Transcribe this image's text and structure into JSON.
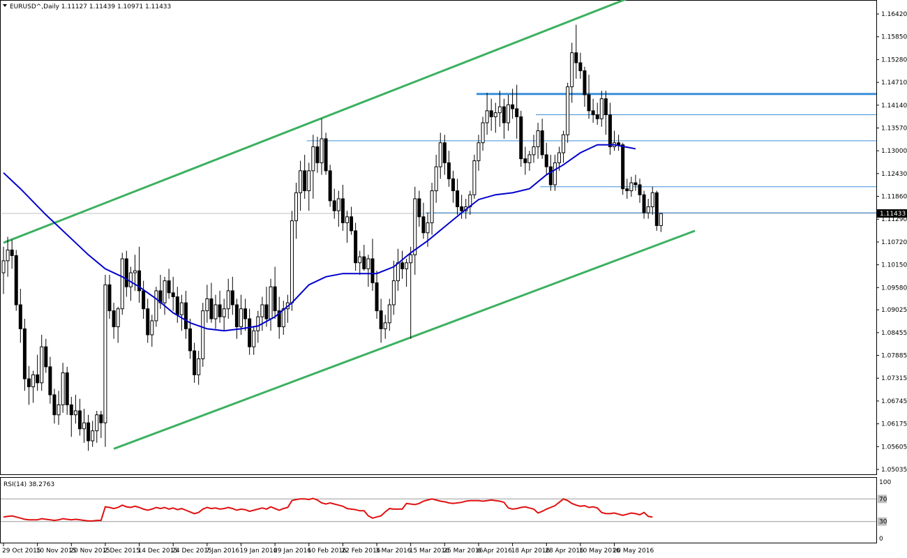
{
  "window": {
    "symbol_header": "EURUSD^,Daily  1.11127 1.11439 1.10971 1.11433",
    "dropdown_icon": "triangle-down-icon"
  },
  "chart_data": {
    "type": "candlestick",
    "title": "EURUSD^,Daily",
    "ohlc_header": {
      "open": 1.11127,
      "high": 1.11439,
      "low": 1.10971,
      "close": 1.11433
    },
    "price_axis": {
      "ticks": [
        "1.16420",
        "1.15850",
        "1.15280",
        "1.14710",
        "1.14140",
        "1.13570",
        "1.13000",
        "1.12430",
        "1.11860",
        "1.11290",
        "1.10720",
        "1.10150",
        "1.09580",
        "1.09025",
        "1.08455",
        "1.07885",
        "1.07315",
        "1.06745",
        "1.06175",
        "1.05605",
        "1.05035"
      ],
      "range": [
        1.0503,
        1.1677
      ],
      "current_price_label": "1.11433",
      "current_price": 1.11433
    },
    "time_axis": {
      "labels": [
        "29 Oct 2015",
        "10 Nov 2015",
        "20 Nov 2015",
        "2 Dec 2015",
        "14 Dec 2015",
        "24 Dec 2015",
        "7 Jan 2016",
        "19 Jan 2016",
        "29 Jan 2016",
        "10 Feb 2016",
        "22 Feb 2016",
        "3 Mar 2016",
        "15 Mar 2016",
        "25 Mar 2016",
        "6 Apr 2016",
        "18 Apr 2016",
        "28 Apr 2016",
        "10 May 2016",
        "20 May 2016"
      ],
      "label_bar_index": [
        0,
        8,
        16,
        24,
        32,
        40,
        48,
        56,
        64,
        72,
        80,
        88,
        96,
        104,
        112,
        120,
        128,
        136,
        144
      ]
    },
    "candles": [
      [
        1.0995,
        1.106,
        1.0942,
        1.1025
      ],
      [
        1.1025,
        1.1085,
        1.0985,
        1.1052
      ],
      [
        1.1052,
        1.1078,
        1.1005,
        1.1038
      ],
      [
        1.1038,
        1.1052,
        1.09,
        1.0915
      ],
      [
        1.0915,
        1.0955,
        1.082,
        1.0855
      ],
      [
        1.0855,
        1.088,
        1.07,
        1.073
      ],
      [
        1.073,
        1.0762,
        1.0665,
        1.071
      ],
      [
        1.071,
        1.075,
        1.067,
        1.074
      ],
      [
        1.074,
        1.079,
        1.07,
        1.072
      ],
      [
        1.072,
        1.084,
        1.07,
        1.081
      ],
      [
        1.081,
        1.083,
        1.0745,
        1.076
      ],
      [
        1.076,
        1.0785,
        1.0668,
        1.069
      ],
      [
        1.069,
        1.0705,
        1.0618,
        1.064
      ],
      [
        1.064,
        1.07,
        1.0615,
        1.0665
      ],
      [
        1.0665,
        1.077,
        1.0645,
        1.0745
      ],
      [
        1.0745,
        1.076,
        1.064,
        1.0665
      ],
      [
        1.0665,
        1.0685,
        1.0585,
        1.064
      ],
      [
        1.064,
        1.069,
        1.0618,
        1.065
      ],
      [
        1.065,
        1.068,
        1.0588,
        1.0605
      ],
      [
        1.0605,
        1.0655,
        1.057,
        1.062
      ],
      [
        1.062,
        1.064,
        1.055,
        1.0575
      ],
      [
        1.0575,
        1.0625,
        1.056,
        1.06
      ],
      [
        1.06,
        1.065,
        1.057,
        1.064
      ],
      [
        1.064,
        1.065,
        1.0582,
        1.062
      ],
      [
        1.062,
        1.099,
        1.056,
        1.0965
      ],
      [
        1.0965,
        1.099,
        1.088,
        1.09
      ],
      [
        1.09,
        1.092,
        1.083,
        1.086
      ],
      [
        1.086,
        1.091,
        1.082,
        1.0905
      ],
      [
        1.0905,
        1.1045,
        1.089,
        1.103
      ],
      [
        1.103,
        1.105,
        1.0935,
        1.096
      ],
      [
        1.096,
        1.101,
        1.0925,
        1.0995
      ],
      [
        1.0995,
        1.104,
        1.095,
        1.1
      ],
      [
        1.1,
        1.106,
        1.092,
        1.095
      ],
      [
        1.095,
        1.0975,
        1.088,
        1.0905
      ],
      [
        1.0905,
        1.093,
        1.082,
        1.084
      ],
      [
        1.084,
        1.089,
        1.081,
        1.0875
      ],
      [
        1.0875,
        1.096,
        1.086,
        1.095
      ],
      [
        1.095,
        1.099,
        1.0905,
        1.092
      ],
      [
        1.092,
        1.0985,
        1.089,
        1.0975
      ],
      [
        1.0975,
        1.1005,
        1.093,
        1.0945
      ],
      [
        1.0945,
        1.0985,
        1.09,
        1.0935
      ],
      [
        1.0935,
        1.096,
        1.087,
        1.089
      ],
      [
        1.089,
        1.094,
        1.085,
        1.092
      ],
      [
        1.092,
        1.095,
        1.083,
        1.0855
      ],
      [
        1.0855,
        1.088,
        1.078,
        1.08
      ],
      [
        1.08,
        1.082,
        1.072,
        1.074
      ],
      [
        1.074,
        1.08,
        1.0715,
        1.078
      ],
      [
        1.078,
        1.092,
        1.076,
        1.09
      ],
      [
        1.09,
        1.0965,
        1.087,
        1.093
      ],
      [
        1.093,
        1.097,
        1.087,
        1.088
      ],
      [
        1.088,
        1.094,
        1.0855,
        1.0915
      ],
      [
        1.0915,
        1.095,
        1.087,
        1.0885
      ],
      [
        1.0885,
        1.093,
        1.085,
        1.0905
      ],
      [
        1.0905,
        1.098,
        1.088,
        1.095
      ],
      [
        1.095,
        1.0985,
        1.089,
        1.0915
      ],
      [
        1.0915,
        1.093,
        1.083,
        1.086
      ],
      [
        1.086,
        1.094,
        1.084,
        1.0905
      ],
      [
        1.0905,
        1.093,
        1.085,
        1.088
      ],
      [
        1.088,
        1.0905,
        1.079,
        1.081
      ],
      [
        1.081,
        1.086,
        1.079,
        1.085
      ],
      [
        1.085,
        1.09,
        1.082,
        1.0885
      ],
      [
        1.0885,
        1.0935,
        1.085,
        1.0915
      ],
      [
        1.0915,
        1.096,
        1.086,
        1.088
      ],
      [
        1.088,
        1.098,
        1.085,
        1.096
      ],
      [
        1.096,
        1.101,
        1.088,
        1.09
      ],
      [
        1.09,
        1.0935,
        1.083,
        1.086
      ],
      [
        1.086,
        1.0925,
        1.084,
        1.0905
      ],
      [
        1.0905,
        1.094,
        1.087,
        1.092
      ],
      [
        1.092,
        1.115,
        1.09,
        1.1125
      ],
      [
        1.1125,
        1.122,
        1.108,
        1.1195
      ],
      [
        1.1195,
        1.1275,
        1.115,
        1.125
      ],
      [
        1.125,
        1.129,
        1.118,
        1.12
      ],
      [
        1.12,
        1.127,
        1.115,
        1.125
      ],
      [
        1.125,
        1.134,
        1.118,
        1.131
      ],
      [
        1.131,
        1.1335,
        1.1245,
        1.127
      ],
      [
        1.127,
        1.138,
        1.124,
        1.133
      ],
      [
        1.133,
        1.1345,
        1.124,
        1.125
      ],
      [
        1.125,
        1.1265,
        1.116,
        1.1175
      ],
      [
        1.1175,
        1.1205,
        1.113,
        1.115
      ],
      [
        1.115,
        1.12,
        1.111,
        1.118
      ],
      [
        1.118,
        1.1215,
        1.11,
        1.112
      ],
      [
        1.112,
        1.115,
        1.107,
        1.1135
      ],
      [
        1.1135,
        1.116,
        1.109,
        1.11
      ],
      [
        1.11,
        1.112,
        1.1,
        1.102
      ],
      [
        1.102,
        1.105,
        1.099,
        1.1035
      ],
      [
        1.1035,
        1.1065,
        1.1,
        1.1005
      ],
      [
        1.1005,
        1.104,
        1.096,
        1.103
      ],
      [
        1.103,
        1.108,
        1.095,
        1.097
      ],
      [
        1.097,
        1.1,
        1.088,
        1.09
      ],
      [
        1.09,
        1.093,
        1.082,
        1.0855
      ],
      [
        1.0855,
        1.089,
        1.083,
        1.087
      ],
      [
        1.087,
        1.093,
        1.085,
        1.0915
      ],
      [
        1.0915,
        1.1025,
        1.089,
        1.0975
      ],
      [
        1.0975,
        1.1055,
        1.095,
        1.102
      ],
      [
        1.102,
        1.105,
        1.098,
        1.1005
      ],
      [
        1.1005,
        1.103,
        1.096,
        1.102
      ],
      [
        1.102,
        1.106,
        1.083,
        1.104
      ],
      [
        1.104,
        1.121,
        1.099,
        1.118
      ],
      [
        1.118,
        1.12,
        1.111,
        1.1135
      ],
      [
        1.1135,
        1.117,
        1.108,
        1.1095
      ],
      [
        1.1095,
        1.1145,
        1.106,
        1.112
      ],
      [
        1.112,
        1.122,
        1.109,
        1.12
      ],
      [
        1.12,
        1.129,
        1.117,
        1.126
      ],
      [
        1.126,
        1.1345,
        1.123,
        1.132
      ],
      [
        1.132,
        1.134,
        1.124,
        1.127
      ],
      [
        1.127,
        1.13,
        1.121,
        1.123
      ],
      [
        1.123,
        1.125,
        1.117,
        1.12
      ],
      [
        1.12,
        1.123,
        1.114,
        1.116
      ],
      [
        1.116,
        1.119,
        1.113,
        1.115
      ],
      [
        1.115,
        1.118,
        1.113,
        1.116
      ],
      [
        1.116,
        1.12,
        1.114,
        1.119
      ],
      [
        1.119,
        1.129,
        1.118,
        1.1275
      ],
      [
        1.1275,
        1.134,
        1.125,
        1.132
      ],
      [
        1.132,
        1.1385,
        1.13,
        1.137
      ],
      [
        1.137,
        1.1445,
        1.134,
        1.14
      ],
      [
        1.14,
        1.143,
        1.135,
        1.1385
      ],
      [
        1.1385,
        1.142,
        1.1345,
        1.1395
      ],
      [
        1.1395,
        1.145,
        1.136,
        1.141
      ],
      [
        1.141,
        1.143,
        1.133,
        1.137
      ],
      [
        1.137,
        1.144,
        1.135,
        1.1415
      ],
      [
        1.1415,
        1.1455,
        1.138,
        1.1405
      ],
      [
        1.1405,
        1.1465,
        1.133,
        1.1385
      ],
      [
        1.1385,
        1.14,
        1.126,
        1.128
      ],
      [
        1.128,
        1.131,
        1.124,
        1.127
      ],
      [
        1.127,
        1.13,
        1.125,
        1.129
      ],
      [
        1.129,
        1.134,
        1.127,
        1.131
      ],
      [
        1.131,
        1.137,
        1.128,
        1.135
      ],
      [
        1.135,
        1.138,
        1.128,
        1.129
      ],
      [
        1.129,
        1.132,
        1.124,
        1.126
      ],
      [
        1.126,
        1.129,
        1.12,
        1.1215
      ],
      [
        1.1215,
        1.129,
        1.12,
        1.127
      ],
      [
        1.127,
        1.131,
        1.125,
        1.1295
      ],
      [
        1.1295,
        1.135,
        1.127,
        1.134
      ],
      [
        1.134,
        1.147,
        1.132,
        1.146
      ],
      [
        1.146,
        1.157,
        1.142,
        1.1545
      ],
      [
        1.1545,
        1.1615,
        1.148,
        1.152
      ],
      [
        1.152,
        1.1545,
        1.148,
        1.15
      ],
      [
        1.15,
        1.151,
        1.141,
        1.144
      ],
      [
        1.144,
        1.149,
        1.138,
        1.14
      ],
      [
        1.14,
        1.143,
        1.137,
        1.139
      ],
      [
        1.139,
        1.142,
        1.1365,
        1.138
      ],
      [
        1.138,
        1.145,
        1.136,
        1.143
      ],
      [
        1.143,
        1.145,
        1.134,
        1.139
      ],
      [
        1.139,
        1.142,
        1.129,
        1.131
      ],
      [
        1.131,
        1.135,
        1.13,
        1.132
      ],
      [
        1.132,
        1.134,
        1.13,
        1.1315
      ],
      [
        1.1315,
        1.132,
        1.119,
        1.1205
      ],
      [
        1.1205,
        1.123,
        1.118,
        1.12
      ],
      [
        1.12,
        1.1235,
        1.1185,
        1.122
      ],
      [
        1.122,
        1.124,
        1.12,
        1.1215
      ],
      [
        1.1215,
        1.123,
        1.117,
        1.119
      ],
      [
        1.119,
        1.12,
        1.113,
        1.1145
      ],
      [
        1.1145,
        1.118,
        1.113,
        1.116
      ],
      [
        1.116,
        1.121,
        1.114,
        1.1195
      ],
      [
        1.1195,
        1.12,
        1.11,
        1.1113
      ],
      [
        1.1113,
        1.1144,
        1.1097,
        1.1143
      ]
    ],
    "moving_average": {
      "anchors": [
        [
          0,
          1.1245
        ],
        [
          4,
          1.1205
        ],
        [
          10,
          1.114
        ],
        [
          16,
          1.108
        ],
        [
          20,
          1.104
        ],
        [
          24,
          1.1005
        ],
        [
          28,
          1.0985
        ],
        [
          32,
          1.096
        ],
        [
          36,
          1.093
        ],
        [
          40,
          1.0895
        ],
        [
          44,
          1.087
        ],
        [
          48,
          1.0855
        ],
        [
          52,
          1.085
        ],
        [
          56,
          1.0855
        ],
        [
          60,
          1.0862
        ],
        [
          64,
          1.0885
        ],
        [
          68,
          1.092
        ],
        [
          72,
          1.0965
        ],
        [
          76,
          1.0985
        ],
        [
          80,
          1.0993
        ],
        [
          84,
          1.0993
        ],
        [
          88,
          1.0993
        ],
        [
          92,
          1.101
        ],
        [
          96,
          1.1045
        ],
        [
          100,
          1.1075
        ],
        [
          104,
          1.111
        ],
        [
          108,
          1.1145
        ],
        [
          112,
          1.1178
        ],
        [
          116,
          1.119
        ],
        [
          120,
          1.1195
        ],
        [
          124,
          1.1205
        ],
        [
          128,
          1.124
        ],
        [
          132,
          1.1265
        ],
        [
          136,
          1.1295
        ],
        [
          140,
          1.1315
        ],
        [
          144,
          1.1315
        ],
        [
          149,
          1.1305
        ]
      ]
    },
    "horizontal_lines": [
      {
        "price": 1.1442,
        "from_bar": 112,
        "color": "#3a8fd9",
        "width": 3
      },
      {
        "price": 1.139,
        "from_bar": 126,
        "color": "#3a8fd9",
        "width": 1
      },
      {
        "price": 1.1325,
        "from_bar": 72,
        "color": "#3a8fd9",
        "width": 1
      },
      {
        "price": 1.121,
        "from_bar": 127,
        "color": "#3a8fd9",
        "width": 1
      },
      {
        "price": 1.1145,
        "from_bar": 100,
        "color": "#3a8fd9",
        "width": 1
      },
      {
        "price": 1.11433,
        "from_bar": 0,
        "color": "#c0c0c0",
        "width": 1
      }
    ],
    "trend_lines": [
      {
        "name": "upper-channel",
        "from": [
          0,
          1.107
        ],
        "to": [
          147,
          1.168
        ],
        "color": "#3cb060"
      },
      {
        "name": "lower-channel",
        "from": [
          26,
          1.0555
        ],
        "to": [
          163,
          1.11
        ],
        "color": "#3cb060"
      }
    ],
    "rsi": {
      "label": "RSI(14) 38.2763",
      "period": 14,
      "value": 38.2763,
      "levels": [
        "100",
        "70",
        "30",
        "0"
      ],
      "values": [
        38,
        39,
        40,
        38,
        36,
        34,
        33,
        33,
        33,
        35,
        34,
        33,
        32,
        33,
        35,
        34,
        33,
        34,
        33,
        32,
        31,
        31,
        32,
        32,
        56,
        55,
        53,
        55,
        59,
        56,
        55,
        57,
        55,
        52,
        50,
        52,
        55,
        53,
        55,
        52,
        54,
        51,
        53,
        50,
        47,
        44,
        46,
        52,
        55,
        53,
        54,
        52,
        53,
        55,
        53,
        50,
        52,
        51,
        48,
        50,
        52,
        54,
        52,
        56,
        53,
        50,
        53,
        55,
        67,
        69,
        70,
        70,
        69,
        71,
        68,
        63,
        61,
        63,
        61,
        59,
        57,
        53,
        52,
        51,
        49,
        49,
        40,
        36,
        38,
        40,
        47,
        53,
        52,
        52,
        52,
        62,
        61,
        60,
        62,
        66,
        68,
        70,
        68,
        66,
        65,
        63,
        62,
        63,
        64,
        66,
        67,
        67,
        67,
        66,
        67,
        68,
        67,
        66,
        64,
        54,
        52,
        53,
        55,
        56,
        54,
        52,
        45,
        48,
        52,
        55,
        58,
        64,
        70,
        67,
        62,
        59,
        57,
        58,
        55,
        56,
        54,
        46,
        44,
        44,
        45,
        43,
        41,
        43,
        45,
        44,
        42,
        46,
        39,
        38
      ],
      "overbought": 70,
      "oversold": 30
    },
    "colors": {
      "bull_candle": "#ffffff",
      "bear_candle": "#000000",
      "moving_average": "#0000cc",
      "rsi_line": "#e01010",
      "channel": "#3cb060",
      "levels": "#3a8fd9"
    }
  }
}
